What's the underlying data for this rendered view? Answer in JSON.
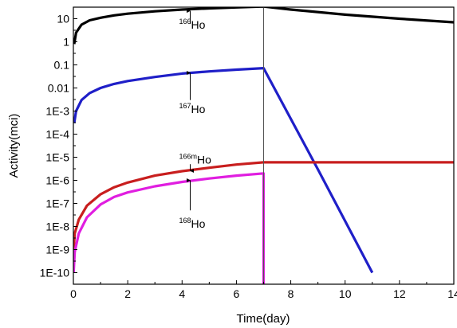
{
  "chart_data": {
    "type": "line",
    "xlabel": "Time(day)",
    "ylabel": "Activity(mci)",
    "xlim": [
      0,
      14
    ],
    "ylim_exp": [
      -10.5,
      1.5
    ],
    "yscale": "log",
    "grid": false,
    "legend": "none",
    "x_ticks": [
      0,
      2,
      4,
      6,
      8,
      10,
      12,
      14
    ],
    "x_tick_labels": [
      "0",
      "2",
      "4",
      "6",
      "8",
      "10",
      "12",
      "14"
    ],
    "y_tick_values": [
      10,
      1,
      0.1,
      0.01,
      0.001,
      0.0001,
      1e-05,
      1e-06,
      1e-07,
      1e-08,
      1e-09,
      1e-10
    ],
    "y_tick_labels": [
      "10",
      "1",
      "0.1",
      "0.01",
      "1E-3",
      "1E-4",
      "1E-5",
      "1E-6",
      "1E-7",
      "1E-8",
      "1E-9",
      "1E-10"
    ],
    "irradiation_end_day": 7,
    "series": [
      {
        "color": "#000000",
        "x": [
          0.03,
          0.1,
          0.3,
          0.6,
          1,
          1.5,
          2,
          3,
          4,
          5,
          6,
          7,
          8,
          10,
          12,
          14
        ],
        "y": [
          0.8,
          2.5,
          5.5,
          8.5,
          11,
          14,
          16.5,
          21,
          25,
          28,
          31,
          34,
          25,
          15,
          10,
          7
        ]
      },
      {
        "color": "#1f1fc8",
        "x": [
          0.03,
          0.1,
          0.3,
          0.6,
          1,
          1.5,
          2,
          3,
          4,
          5,
          6,
          7,
          9,
          11
        ],
        "y": [
          0.0003,
          0.001,
          0.003,
          0.006,
          0.01,
          0.015,
          0.02,
          0.03,
          0.042,
          0.052,
          0.062,
          0.072,
          3e-06,
          1e-10
        ]
      },
      {
        "color": "#c81e1e",
        "x": [
          0.01,
          0.05,
          0.2,
          0.5,
          1,
          1.5,
          2,
          3,
          4,
          5,
          6,
          7,
          14
        ],
        "y": [
          1e-09,
          5e-09,
          2e-08,
          8e-08,
          2.5e-07,
          5e-07,
          8e-07,
          1.6e-06,
          2.5e-06,
          3.5e-06,
          4.8e-06,
          6e-06,
          6e-06
        ]
      },
      {
        "color": "#e01ee0",
        "x": [
          0.01,
          0.05,
          0.2,
          0.5,
          1,
          1.5,
          2,
          3,
          4,
          5,
          6,
          7,
          7,
          7
        ],
        "y": [
          1e-10,
          8e-10,
          5e-09,
          2.5e-08,
          9e-08,
          1.9e-07,
          3e-07,
          5.5e-07,
          8.5e-07,
          1.2e-06,
          1.6e-06,
          2e-06,
          2e-06,
          1e-11
        ]
      }
    ],
    "annotations": [
      {
        "sup": "166",
        "text": "Ho",
        "x": 4.3,
        "y": 5.5,
        "arrow_from_y": 6,
        "arrow_to_y": 22
      },
      {
        "sup": "167",
        "text": "Ho",
        "x": 4.3,
        "y": 0.0012,
        "arrow_from_y": 0.003,
        "arrow_to_y": 0.045
      },
      {
        "sup": "166m",
        "text": "Ho",
        "x": 4.3,
        "y": 8e-06,
        "arrow_from_y": 5e-06,
        "arrow_to_y": 2.6e-06
      },
      {
        "sup": "168",
        "text": "Ho",
        "x": 4.3,
        "y": 1.3e-08,
        "arrow_from_y": 5e-08,
        "arrow_to_y": 1e-06
      }
    ]
  }
}
